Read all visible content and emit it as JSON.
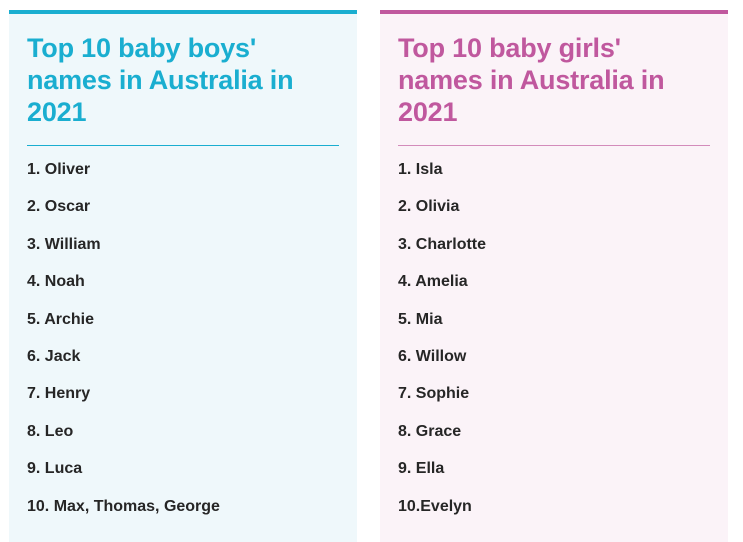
{
  "boys": {
    "title": "Top 10 baby boys' names in Australia in 2021",
    "names": [
      "1. Oliver",
      "2. Oscar",
      "3. William",
      "4. Noah",
      "5. Archie",
      "6. Jack",
      "7. Henry",
      "8. Leo",
      "9. Luca",
      "10. Max, Thomas, George"
    ],
    "accent_color": "#1aaed0"
  },
  "girls": {
    "title": "Top 10 baby girls' names in Australia in 2021",
    "names": [
      "1. Isla",
      "2. Olivia",
      "3. Charlotte",
      "4. Amelia",
      "5. Mia",
      "6. Willow",
      "7. Sophie",
      "8. Grace",
      "9. Ella",
      "10.Evelyn"
    ],
    "accent_color": "#c0589e"
  }
}
